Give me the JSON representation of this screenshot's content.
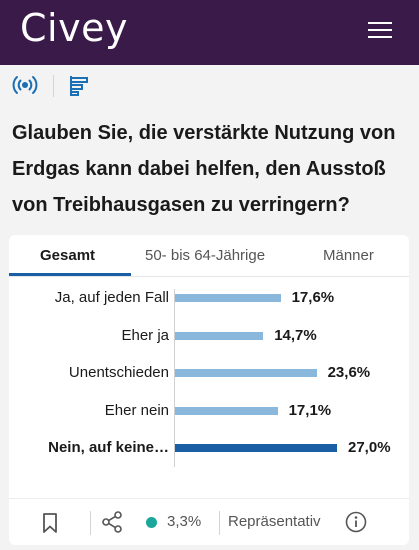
{
  "header": {
    "logo_text": "Civey",
    "menu_icon": "hamburger-menu-icon"
  },
  "iconbar": {
    "live_icon": "broadcast-icon",
    "results_icon": "bar-chart-icon"
  },
  "question": "Glauben Sie, die verstärkte Nutzung von Erdgas kann dabei helfen, den Ausstoß von Treibhausgasen zu verringern?",
  "tabs": [
    {
      "label": "Gesamt",
      "active": true
    },
    {
      "label": "50- bis 64-Jährige",
      "active": false
    },
    {
      "label": "Männer",
      "active": false
    }
  ],
  "chart_data": {
    "type": "bar",
    "orientation": "horizontal",
    "categories": [
      "Ja, auf jeden Fall",
      "Eher ja",
      "Unentschieden",
      "Eher nein",
      "Nein, auf keine…"
    ],
    "values": [
      17.6,
      14.7,
      23.6,
      17.1,
      27.0
    ],
    "value_labels": [
      "17,6%",
      "14,7%",
      "23,6%",
      "17,1%",
      "27,0%"
    ],
    "highlighted_index": 4,
    "colors": {
      "bar": "#8ab8dc",
      "highlight": "#1a5fa3"
    }
  },
  "footer": {
    "bookmark_icon": "bookmark-icon",
    "share_icon": "share-icon",
    "status_color": "#1aa79a",
    "margin_of_error": "3,3%",
    "representative_label": "Repräsentativ",
    "info_icon": "info-icon"
  },
  "colors": {
    "header_bg": "#3a1a48",
    "accent": "#1a5fa3",
    "icon_blue": "#1a6fb5"
  }
}
